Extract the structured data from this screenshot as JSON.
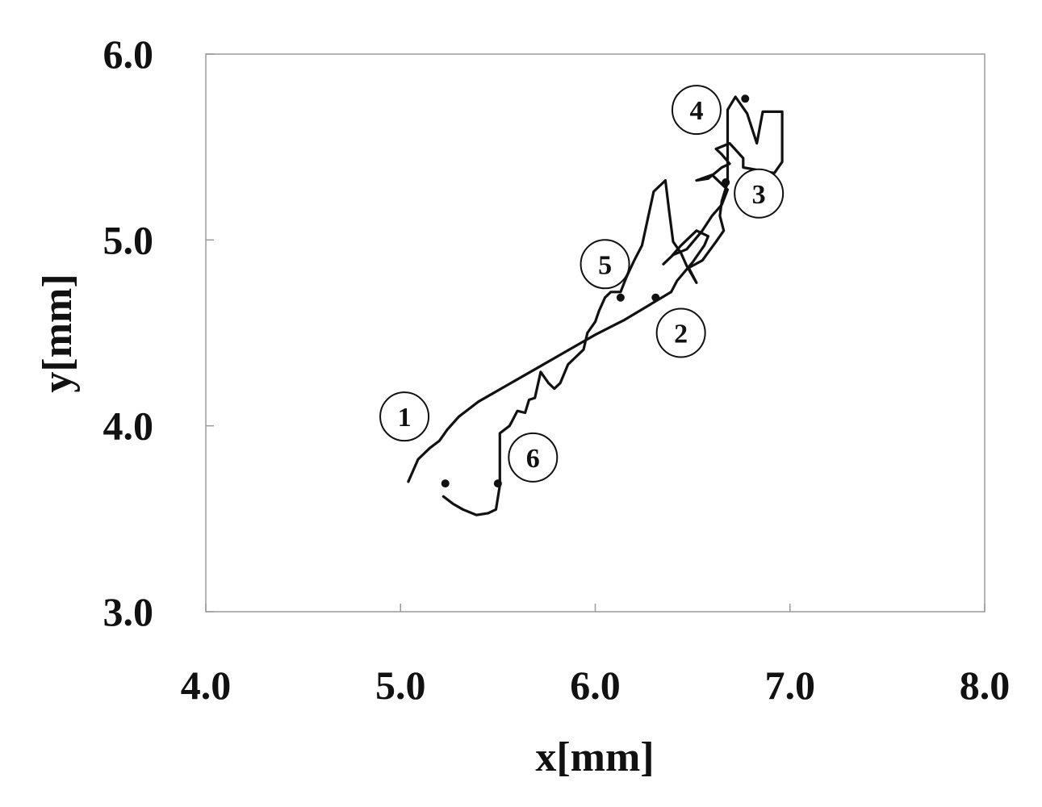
{
  "chart_data": {
    "type": "line",
    "title": "",
    "xlabel": "x[mm]",
    "ylabel": "y[mm]",
    "xlim": [
      4.0,
      8.0
    ],
    "ylim": [
      3.0,
      6.0
    ],
    "x_ticks": [
      "4.0",
      "5.0",
      "6.0",
      "7.0",
      "8.0"
    ],
    "y_ticks": [
      "3.0",
      "4.0",
      "5.0",
      "6.0"
    ],
    "grid": false,
    "legend": "none",
    "line_color": "#111111",
    "series": [
      {
        "x": [
          5.04,
          5.09,
          5.15,
          5.2,
          5.24,
          5.3,
          5.4,
          5.55,
          5.7,
          5.85,
          6.0,
          6.15,
          6.31,
          6.39,
          6.42,
          6.5,
          6.56,
          6.58,
          6.52,
          6.44,
          6.39,
          6.35,
          6.4,
          6.47,
          6.55,
          6.6,
          6.65,
          6.68,
          6.6,
          6.52,
          6.58,
          6.65,
          6.69,
          6.65,
          6.62,
          6.69,
          6.76,
          6.76,
          6.92,
          6.96,
          6.96,
          6.86,
          6.83,
          6.78,
          6.72,
          6.68,
          6.68,
          6.68
        ],
        "y": [
          3.7,
          3.82,
          3.88,
          3.92,
          3.98,
          4.05,
          4.13,
          4.22,
          4.31,
          4.4,
          4.49,
          4.57,
          4.67,
          4.72,
          4.78,
          4.88,
          4.97,
          5.02,
          5.05,
          4.97,
          4.91,
          4.87,
          4.92,
          4.95,
          5.05,
          5.13,
          5.19,
          5.27,
          5.35,
          5.32,
          5.33,
          5.39,
          5.41,
          5.46,
          5.49,
          5.52,
          5.44,
          5.39,
          5.36,
          5.42,
          5.69,
          5.69,
          5.52,
          5.68,
          5.77,
          5.7,
          5.5,
          5.32
        ]
      },
      {
        "x": [
          6.68,
          6.65,
          6.64,
          6.66,
          6.62,
          6.55,
          6.48,
          6.52,
          6.47,
          6.44,
          6.4,
          6.38,
          6.36,
          6.3,
          6.24,
          6.2,
          6.16,
          6.13,
          6.08,
          6.05,
          6.02,
          6.0,
          5.96,
          5.94,
          5.9,
          5.86,
          5.82,
          5.79,
          5.76,
          5.72,
          5.69,
          5.66,
          5.64,
          5.6,
          5.57,
          5.56,
          5.51,
          5.51
        ],
        "y": [
          5.31,
          5.21,
          5.13,
          5.05,
          4.99,
          4.89,
          4.85,
          4.77,
          4.86,
          4.93,
          4.99,
          5.15,
          5.32,
          5.26,
          4.97,
          4.89,
          4.8,
          4.72,
          4.72,
          4.69,
          4.62,
          4.56,
          4.5,
          4.41,
          4.37,
          4.33,
          4.23,
          4.2,
          4.23,
          4.29,
          4.15,
          4.14,
          4.07,
          4.08,
          4.02,
          4.0,
          3.96,
          3.68
        ]
      },
      {
        "x": [
          5.51,
          5.49,
          5.45,
          5.39,
          5.32,
          5.27,
          5.22
        ],
        "y": [
          3.68,
          3.55,
          3.53,
          3.52,
          3.55,
          3.58,
          3.62
        ]
      }
    ],
    "points": [
      {
        "label": "1",
        "x": 5.23,
        "y": 3.69,
        "label_x": 5.02,
        "label_y": 4.05
      },
      {
        "label": "2",
        "x": 6.31,
        "y": 4.69,
        "label_x": 6.44,
        "label_y": 4.5
      },
      {
        "label": "3",
        "x": 6.67,
        "y": 5.31,
        "label_x": 6.84,
        "label_y": 5.25
      },
      {
        "label": "4",
        "x": 6.77,
        "y": 5.76,
        "label_x": 6.52,
        "label_y": 5.7
      },
      {
        "label": "5",
        "x": 6.13,
        "y": 4.69,
        "label_x": 6.05,
        "label_y": 4.87
      },
      {
        "label": "6",
        "x": 5.5,
        "y": 3.69,
        "label_x": 5.68,
        "label_y": 3.83
      }
    ]
  }
}
